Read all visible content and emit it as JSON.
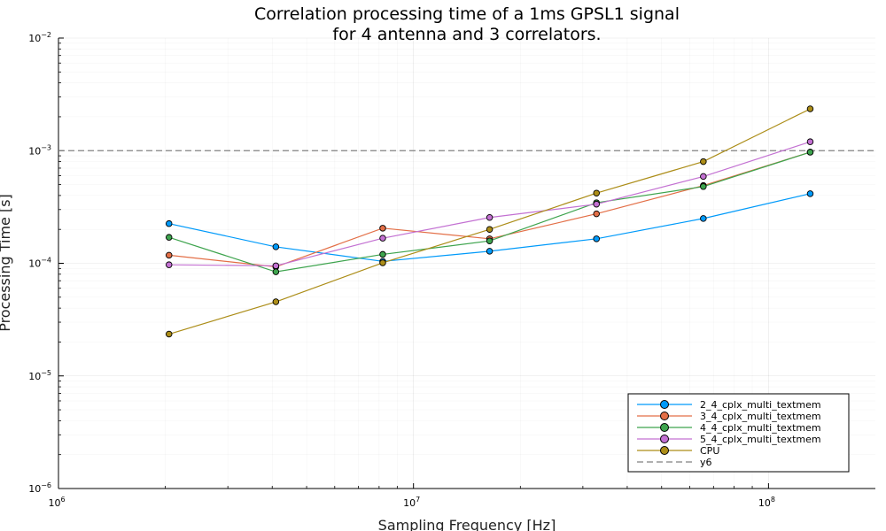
{
  "chart_data": {
    "type": "line",
    "title": [
      "Correlation processing time of a 1ms GPSL1 signal",
      "for 4 antenna and 3 correlators."
    ],
    "xlabel": "Sampling Frequency [Hz]",
    "ylabel": "Processing Time [s]",
    "xscale": "log",
    "yscale": "log",
    "xlim": [
      1000000,
      200000000
    ],
    "ylim": [
      1e-06,
      0.01
    ],
    "x_ticks": [
      {
        "base": "10",
        "exp": "6",
        "value": 1000000
      },
      {
        "base": "10",
        "exp": "7",
        "value": 10000000
      },
      {
        "base": "10",
        "exp": "8",
        "value": 100000000
      }
    ],
    "y_ticks": [
      {
        "base": "10",
        "exp": "−6",
        "value": 1e-06
      },
      {
        "base": "10",
        "exp": "−5",
        "value": 1e-05
      },
      {
        "base": "10",
        "exp": "−4",
        "value": 0.0001
      },
      {
        "base": "10",
        "exp": "−3",
        "value": 0.001
      },
      {
        "base": "10",
        "exp": "−2",
        "value": 0.01
      }
    ],
    "grid": true,
    "legend_position": "bottom-right",
    "x": [
      2048000,
      4096000,
      8192000,
      16384000,
      32768000,
      65536000,
      131072000
    ],
    "series": [
      {
        "name": "2_4_cplx_multi_textmem",
        "color": "#009AFA",
        "values": [
          0.000225,
          0.00014,
          0.000104,
          0.000128,
          0.000165,
          0.00025,
          0.000415
        ]
      },
      {
        "name": "3_4_cplx_multi_textmem",
        "color": "#E36F47",
        "values": [
          0.000118,
          9.3e-05,
          0.000205,
          0.000165,
          0.000275,
          0.00049,
          0.00097
        ]
      },
      {
        "name": "4_4_cplx_multi_textmem",
        "color": "#3EA44E",
        "values": [
          0.00017,
          8.4e-05,
          0.00012,
          0.000158,
          0.000345,
          0.00048,
          0.00097
        ]
      },
      {
        "name": "5_4_cplx_multi_textmem",
        "color": "#C371D2",
        "values": [
          9.7e-05,
          9.5e-05,
          0.000167,
          0.000255,
          0.000335,
          0.00059,
          0.0012
        ]
      },
      {
        "name": "CPU",
        "color": "#AC8D18",
        "values": [
          2.35e-05,
          4.55e-05,
          0.000101,
          0.0002,
          0.00042,
          0.0008,
          0.00235
        ]
      }
    ],
    "hline": {
      "name": "y6",
      "value": 0.001,
      "color": "#808080",
      "style": "dashed"
    }
  }
}
